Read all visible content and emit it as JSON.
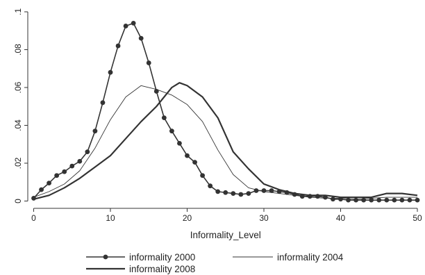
{
  "chart_data": {
    "type": "line",
    "title": "",
    "xlabel": "Informality_Level",
    "ylabel": "",
    "xlim": [
      0,
      50
    ],
    "ylim": [
      0,
      0.1
    ],
    "x_ticks": [
      "0",
      "10",
      "20",
      "30",
      "40",
      "50"
    ],
    "y_ticks": [
      "0",
      ".02",
      ".04",
      ".06",
      ".08",
      ".1"
    ],
    "grid": false,
    "legend_position": "bottom",
    "series": [
      {
        "name": "informality 2000",
        "style": "line-with-markers",
        "color": "#333333",
        "x": [
          0,
          1,
          2,
          3,
          4,
          5,
          6,
          7,
          8,
          9,
          10,
          11,
          12,
          13,
          14,
          15,
          16,
          17,
          18,
          19,
          20,
          21,
          22,
          23,
          24,
          25,
          26,
          27,
          28,
          29,
          30,
          31,
          32,
          33,
          34,
          35,
          36,
          37,
          38,
          39,
          40,
          41,
          42,
          43,
          44,
          45,
          46,
          47,
          48,
          49,
          50
        ],
        "y": [
          0.0015,
          0.006,
          0.0095,
          0.0135,
          0.0155,
          0.0185,
          0.021,
          0.026,
          0.037,
          0.052,
          0.068,
          0.082,
          0.0925,
          0.094,
          0.086,
          0.073,
          0.058,
          0.044,
          0.037,
          0.0305,
          0.024,
          0.0205,
          0.0135,
          0.008,
          0.005,
          0.0045,
          0.004,
          0.0035,
          0.004,
          0.0055,
          0.0055,
          0.0055,
          0.005,
          0.0045,
          0.0035,
          0.0025,
          0.0025,
          0.0025,
          0.002,
          0.001,
          0.001,
          0.0005,
          0.0005,
          0.0005,
          0.0005,
          0.0005,
          0.0005,
          0.0005,
          0.0005,
          0.0005,
          0.0005
        ]
      },
      {
        "name": "informality 2004",
        "style": "thin-line",
        "color": "#333333",
        "x": [
          0,
          2,
          4,
          6,
          8,
          10,
          12,
          14,
          16,
          18,
          20,
          22,
          24,
          26,
          28,
          30,
          32,
          34,
          36,
          38,
          40,
          42,
          44,
          46,
          48,
          50
        ],
        "y": [
          0.002,
          0.005,
          0.009,
          0.016,
          0.028,
          0.043,
          0.055,
          0.061,
          0.059,
          0.056,
          0.051,
          0.042,
          0.027,
          0.014,
          0.007,
          0.005,
          0.004,
          0.003,
          0.002,
          0.0015,
          0.0015,
          0.001,
          0.0015,
          0.002,
          0.002,
          0.002
        ]
      },
      {
        "name": "informality 2008",
        "style": "thick-line",
        "color": "#333333",
        "x": [
          0,
          2,
          4,
          6,
          8,
          10,
          12,
          14,
          16,
          18,
          19,
          20,
          22,
          24,
          26,
          28,
          30,
          32,
          34,
          36,
          38,
          40,
          42,
          44,
          45,
          46,
          48,
          50
        ],
        "y": [
          0.001,
          0.003,
          0.007,
          0.012,
          0.018,
          0.024,
          0.033,
          0.042,
          0.05,
          0.06,
          0.0625,
          0.061,
          0.055,
          0.044,
          0.026,
          0.017,
          0.009,
          0.006,
          0.004,
          0.003,
          0.003,
          0.002,
          0.002,
          0.002,
          0.003,
          0.004,
          0.004,
          0.003
        ]
      }
    ]
  }
}
